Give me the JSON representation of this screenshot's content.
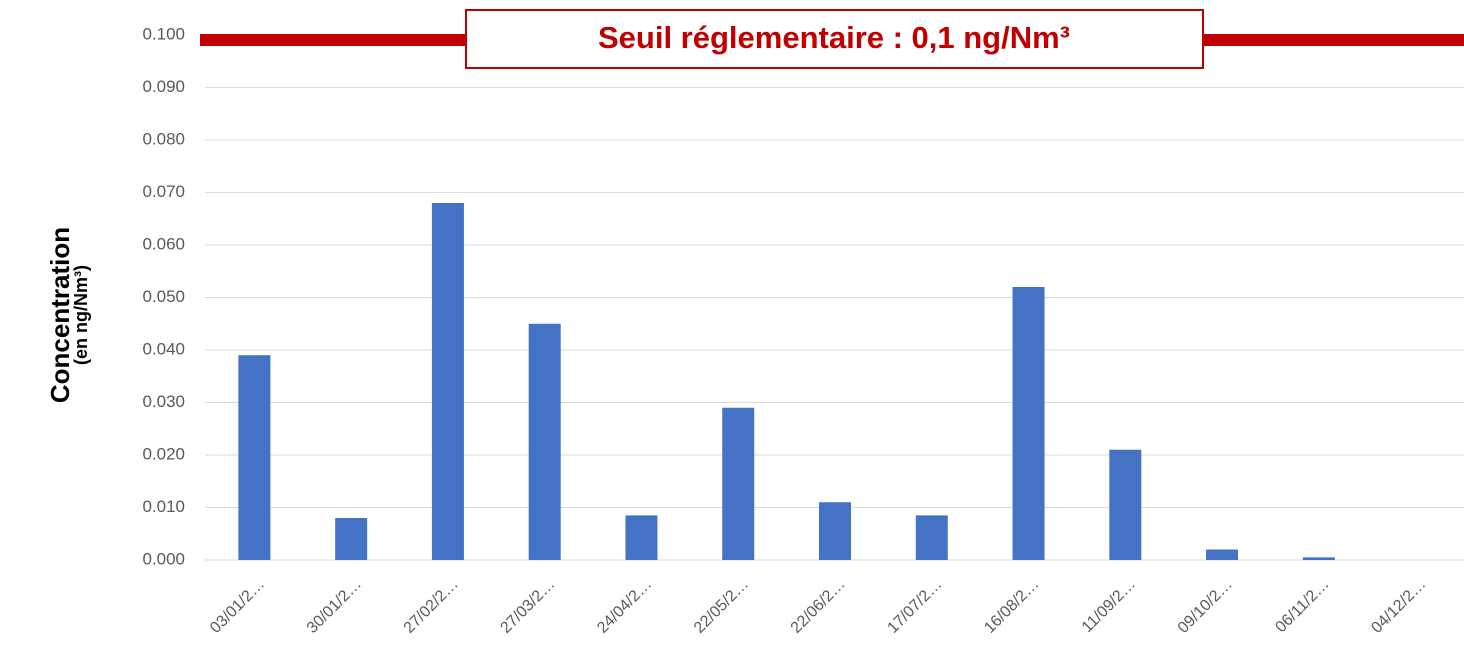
{
  "chart_data": {
    "type": "bar",
    "annotation": "Seuil réglementaire : 0,1 ng/Nm³",
    "threshold": 0.1,
    "y_label": "Concentration",
    "y_sublabel": "(en ng/Nm³)",
    "categories": [
      "03/01/2…",
      "30/01/2…",
      "27/02/2…",
      "27/03/2…",
      "24/04/2…",
      "22/05/2…",
      "22/06/2…",
      "17/07/2…",
      "16/08/2…",
      "11/09/2…",
      "09/10/2…",
      "06/11/2…",
      "04/12/2…"
    ],
    "values": [
      0.039,
      0.008,
      0.068,
      0.045,
      0.0085,
      0.029,
      0.011,
      0.0085,
      0.052,
      0.021,
      0.002,
      0.0005,
      0
    ],
    "color": "#4472c4",
    "ylim": [
      0,
      0.1
    ],
    "yticks": [
      {
        "value": 0,
        "label": "0.000"
      },
      {
        "value": 0.01,
        "label": "0.010"
      },
      {
        "value": 0.02,
        "label": "0.020"
      },
      {
        "value": 0.03,
        "label": "0.030"
      },
      {
        "value": 0.04,
        "label": "0.040"
      },
      {
        "value": 0.05,
        "label": "0.050"
      },
      {
        "value": 0.06,
        "label": "0.060"
      },
      {
        "value": 0.07,
        "label": "0.070"
      },
      {
        "value": 0.08,
        "label": "0.080"
      },
      {
        "value": 0.09,
        "label": "0.090"
      },
      {
        "value": 0.1,
        "label": "0.100"
      }
    ],
    "grid": true
  }
}
